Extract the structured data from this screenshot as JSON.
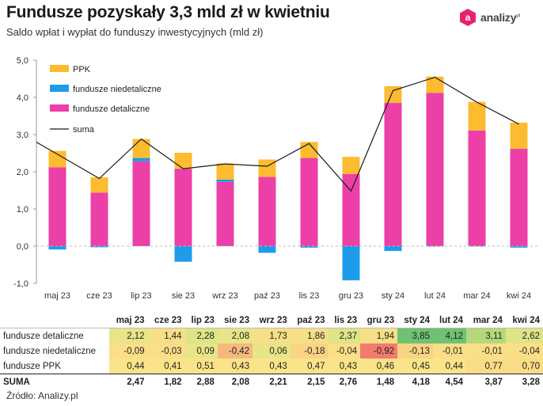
{
  "header": {
    "title": "Fundusze pozyskały 3,3 mld zł w kwietniu",
    "subtitle": "Saldo wpłat i wypłat do funduszy inwestycyjnych (mld zł)",
    "logo_text": "analizy",
    "logo_mark": "pl"
  },
  "colors": {
    "ppk": "#FDBB30",
    "niedetaliczne": "#1E9BE9",
    "detaliczne": "#EC3FA7",
    "suma": "#1a1a1a",
    "logo": "#E5246F"
  },
  "chart_data": {
    "type": "bar",
    "stacked": true,
    "categories": [
      "maj 23",
      "cze 23",
      "lip 23",
      "sie 23",
      "wrz 23",
      "paź 23",
      "lis 23",
      "gru 23",
      "sty 24",
      "lut 24",
      "mar 24",
      "kwi 24"
    ],
    "series": [
      {
        "name": "fundusze detaliczne",
        "type": "bar",
        "values": [
          2.12,
          1.44,
          2.28,
          2.08,
          1.73,
          1.86,
          2.37,
          1.94,
          3.85,
          4.12,
          3.11,
          2.62
        ]
      },
      {
        "name": "fundusze niedetaliczne",
        "type": "bar",
        "values": [
          -0.09,
          -0.03,
          0.09,
          -0.42,
          0.06,
          -0.18,
          -0.04,
          -0.92,
          -0.13,
          -0.01,
          -0.01,
          -0.04
        ]
      },
      {
        "name": "PPK",
        "type": "bar",
        "values": [
          0.44,
          0.41,
          0.51,
          0.43,
          0.43,
          0.47,
          0.43,
          0.46,
          0.45,
          0.44,
          0.77,
          0.7
        ]
      },
      {
        "name": "suma",
        "type": "line",
        "values": [
          2.47,
          1.82,
          2.88,
          2.08,
          2.21,
          2.15,
          2.76,
          1.48,
          4.18,
          4.54,
          3.87,
          3.28
        ]
      }
    ],
    "ylim": [
      -1.0,
      5.0
    ],
    "yticks": [
      "-1,0",
      "0,0",
      "1,0",
      "2,0",
      "3,0",
      "4,0",
      "5,0"
    ],
    "grid": false,
    "legend_position": "top-left"
  },
  "table": {
    "headers": [
      "maj 23",
      "cze 23",
      "lip 23",
      "sie 23",
      "wrz 23",
      "paź 23",
      "lis 23",
      "gru 23",
      "sty 24",
      "lut 24",
      "mar 24",
      "kwi 24"
    ],
    "rows": [
      {
        "label": "fundusze detaliczne",
        "cells": [
          "2,12",
          "1,44",
          "2,28",
          "2,08",
          "1,73",
          "1,86",
          "2,37",
          "1,94",
          "3,85",
          "4,12",
          "3,11",
          "2,62"
        ]
      },
      {
        "label": "fundusze niedetaliczne",
        "cells": [
          "-0,09",
          "-0,03",
          "0,09",
          "-0,42",
          "0,06",
          "-0,18",
          "-0,04",
          "-0,92",
          "-0,13",
          "-0,01",
          "-0,01",
          "-0,04"
        ]
      },
      {
        "label": "fundusze PPK",
        "cells": [
          "0,44",
          "0,41",
          "0,51",
          "0,43",
          "0,43",
          "0,47",
          "0,43",
          "0,46",
          "0,45",
          "0,44",
          "0,77",
          "0,70"
        ]
      },
      {
        "label": "SUMA",
        "cells": [
          "2,47",
          "1,82",
          "2,88",
          "2,08",
          "2,21",
          "2,15",
          "2,76",
          "1,48",
          "4,18",
          "4,54",
          "3,87",
          "3,28"
        ]
      }
    ]
  },
  "footer": {
    "source": "Źródło: Analizy.pl"
  }
}
